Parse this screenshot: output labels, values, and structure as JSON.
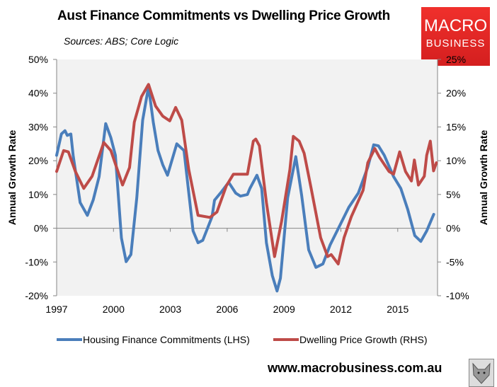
{
  "header": {
    "title": "Aust Finance Commitments vs Dwelling Price Growth",
    "subtitle": "Sources: ABS; Core Logic"
  },
  "logo": {
    "line1": "MACRO",
    "line2": "BUSINESS",
    "color": "#e52a27"
  },
  "footer": {
    "website": "www.macrobusiness.com.au",
    "logo_icon": "wolf-icon"
  },
  "chart_data": {
    "type": "line",
    "title": "Aust Finance Commitments vs Dwelling Price Growth",
    "ylabel": "Annual Growth Rate",
    "y2label": "Annual Growth Rate",
    "xlim": [
      1997,
      2017.1
    ],
    "ylim": [
      -20,
      50
    ],
    "y2lim": [
      -10,
      25
    ],
    "x_ticks": [
      "1997",
      "2000",
      "2003",
      "2006",
      "2009",
      "2012",
      "2015"
    ],
    "y_ticks": [
      "-20%",
      "-10%",
      "0%",
      "10%",
      "20%",
      "30%",
      "40%",
      "50%"
    ],
    "y2_ticks": [
      "-10%",
      "-5%",
      "0%",
      "5%",
      "10%",
      "15%",
      "20%",
      "25%"
    ],
    "grid": false,
    "legend": "bottom",
    "series": [
      {
        "name": "Housing Finance Commitments (LHS)",
        "axis": "left",
        "color": "#4a7ebb",
        "x": [
          1997.0,
          1997.25,
          1997.44,
          1997.56,
          1997.75,
          1997.87,
          1998.24,
          1998.62,
          1998.93,
          1999.24,
          1999.59,
          1999.86,
          2000.1,
          2000.42,
          2000.67,
          2000.92,
          2001.23,
          2001.54,
          2001.85,
          2002.1,
          2002.35,
          2002.6,
          2002.85,
          2003.34,
          2003.72,
          2004.2,
          2004.46,
          2004.71,
          2005.2,
          2005.33,
          2005.7,
          2006.08,
          2006.45,
          2006.7,
          2007.07,
          2007.2,
          2007.57,
          2007.82,
          2008.07,
          2008.38,
          2008.63,
          2008.81,
          2009.19,
          2009.62,
          2009.93,
          2010.3,
          2010.68,
          2011.05,
          2011.43,
          2012.05,
          2012.42,
          2012.92,
          2013.42,
          2013.73,
          2013.98,
          2014.29,
          2014.78,
          2015.16,
          2015.53,
          2015.9,
          2016.22,
          2016.53,
          2016.9
        ],
        "y": [
          21.6,
          27.9,
          28.9,
          27.5,
          27.9,
          21.6,
          7.6,
          3.8,
          8.4,
          15.3,
          31,
          26.8,
          21.6,
          -2.9,
          -9.9,
          -7.8,
          9,
          32,
          41.9,
          31.4,
          23,
          18.8,
          15.7,
          25,
          23,
          -0.8,
          -4.3,
          -3.6,
          3.4,
          8.3,
          10.8,
          13.6,
          10.4,
          9.5,
          10,
          11.8,
          15.7,
          11.8,
          -4.3,
          -14,
          -18.6,
          -14.8,
          9,
          21.2,
          9.7,
          -6.4,
          -11.6,
          -10.6,
          -5,
          2,
          6.2,
          10.4,
          18.1,
          24.7,
          24.4,
          21.6,
          15.3,
          11.8,
          5.5,
          -2.2,
          -3.9,
          -0.8,
          4.1
        ]
      },
      {
        "name": "Dwelling Price Growth (RHS)",
        "axis": "right",
        "color": "#be4b48",
        "x": [
          1997.0,
          1997.37,
          1997.62,
          1997.99,
          1998.43,
          1998.87,
          1999.49,
          1999.86,
          2000.48,
          2000.85,
          2001.1,
          2001.48,
          2001.85,
          2002.22,
          2002.6,
          2002.97,
          2003.28,
          2003.6,
          2003.97,
          2004.46,
          2005.09,
          2005.46,
          2005.96,
          2006.33,
          2007.07,
          2007.38,
          2007.51,
          2007.7,
          2008.07,
          2008.5,
          2008.87,
          2009.31,
          2009.49,
          2009.8,
          2010.06,
          2010.43,
          2010.93,
          2011.3,
          2011.49,
          2011.86,
          2012.17,
          2012.55,
          2013.17,
          2013.42,
          2013.79,
          2014.04,
          2014.54,
          2014.78,
          2015.1,
          2015.41,
          2015.72,
          2015.88,
          2016.09,
          2016.4,
          2016.53,
          2016.72,
          2016.89,
          2017.04
        ],
        "y": [
          8.4,
          11.5,
          11.3,
          8.4,
          5.9,
          7.7,
          12.7,
          11.5,
          6.4,
          9,
          15.7,
          19.5,
          21.3,
          18.1,
          16.6,
          15.9,
          17.9,
          16,
          8.7,
          1.9,
          1.6,
          2.4,
          6.3,
          8,
          8,
          12.9,
          13.2,
          12.2,
          3.8,
          -4.2,
          1,
          8.7,
          13.6,
          12.9,
          11.1,
          5.9,
          -1.4,
          -4.2,
          -3.9,
          -5.3,
          -1.4,
          1.7,
          5.6,
          9.7,
          11.8,
          10.5,
          8.4,
          8,
          11.3,
          8.4,
          7,
          10.1,
          6.4,
          7.7,
          10.8,
          12.9,
          8.5,
          9.7
        ]
      }
    ]
  }
}
